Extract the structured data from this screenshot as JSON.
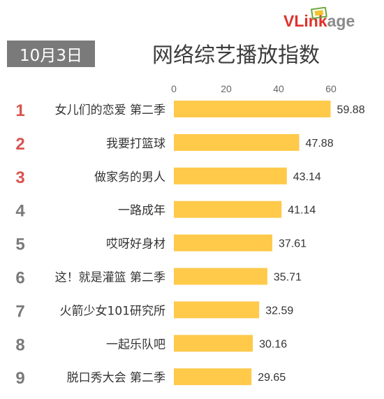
{
  "date_label": "10月3日",
  "title": "网络综艺播放指数",
  "logo": {
    "part1": "VLink",
    "part2": "age"
  },
  "colors": {
    "bar": "#ffc94a",
    "rank_top": "#d9534f",
    "rank_other": "#7a7a7a",
    "axis_text": "#666666"
  },
  "chart_data": {
    "type": "bar",
    "orientation": "horizontal",
    "xlim": [
      0,
      60
    ],
    "ticks": [
      0,
      20,
      40,
      60
    ],
    "ranks": [
      "1",
      "2",
      "3",
      "4",
      "5",
      "6",
      "7",
      "8",
      "9"
    ],
    "categories": [
      "女儿们的恋爱 第二季",
      "我要打篮球",
      "做家务的男人",
      "一路成年",
      "哎呀好身材",
      "这！就是灌篮 第二季",
      "火箭少女101研究所",
      "一起乐队吧",
      "脱口秀大会 第二季"
    ],
    "values": [
      59.88,
      47.88,
      43.14,
      41.14,
      37.61,
      35.71,
      32.59,
      30.16,
      29.65
    ],
    "value_labels": [
      "59.88",
      "47.88",
      "43.14",
      "41.14",
      "37.61",
      "35.71",
      "32.59",
      "30.16",
      "29.65"
    ],
    "legend": "none",
    "grid": false
  }
}
